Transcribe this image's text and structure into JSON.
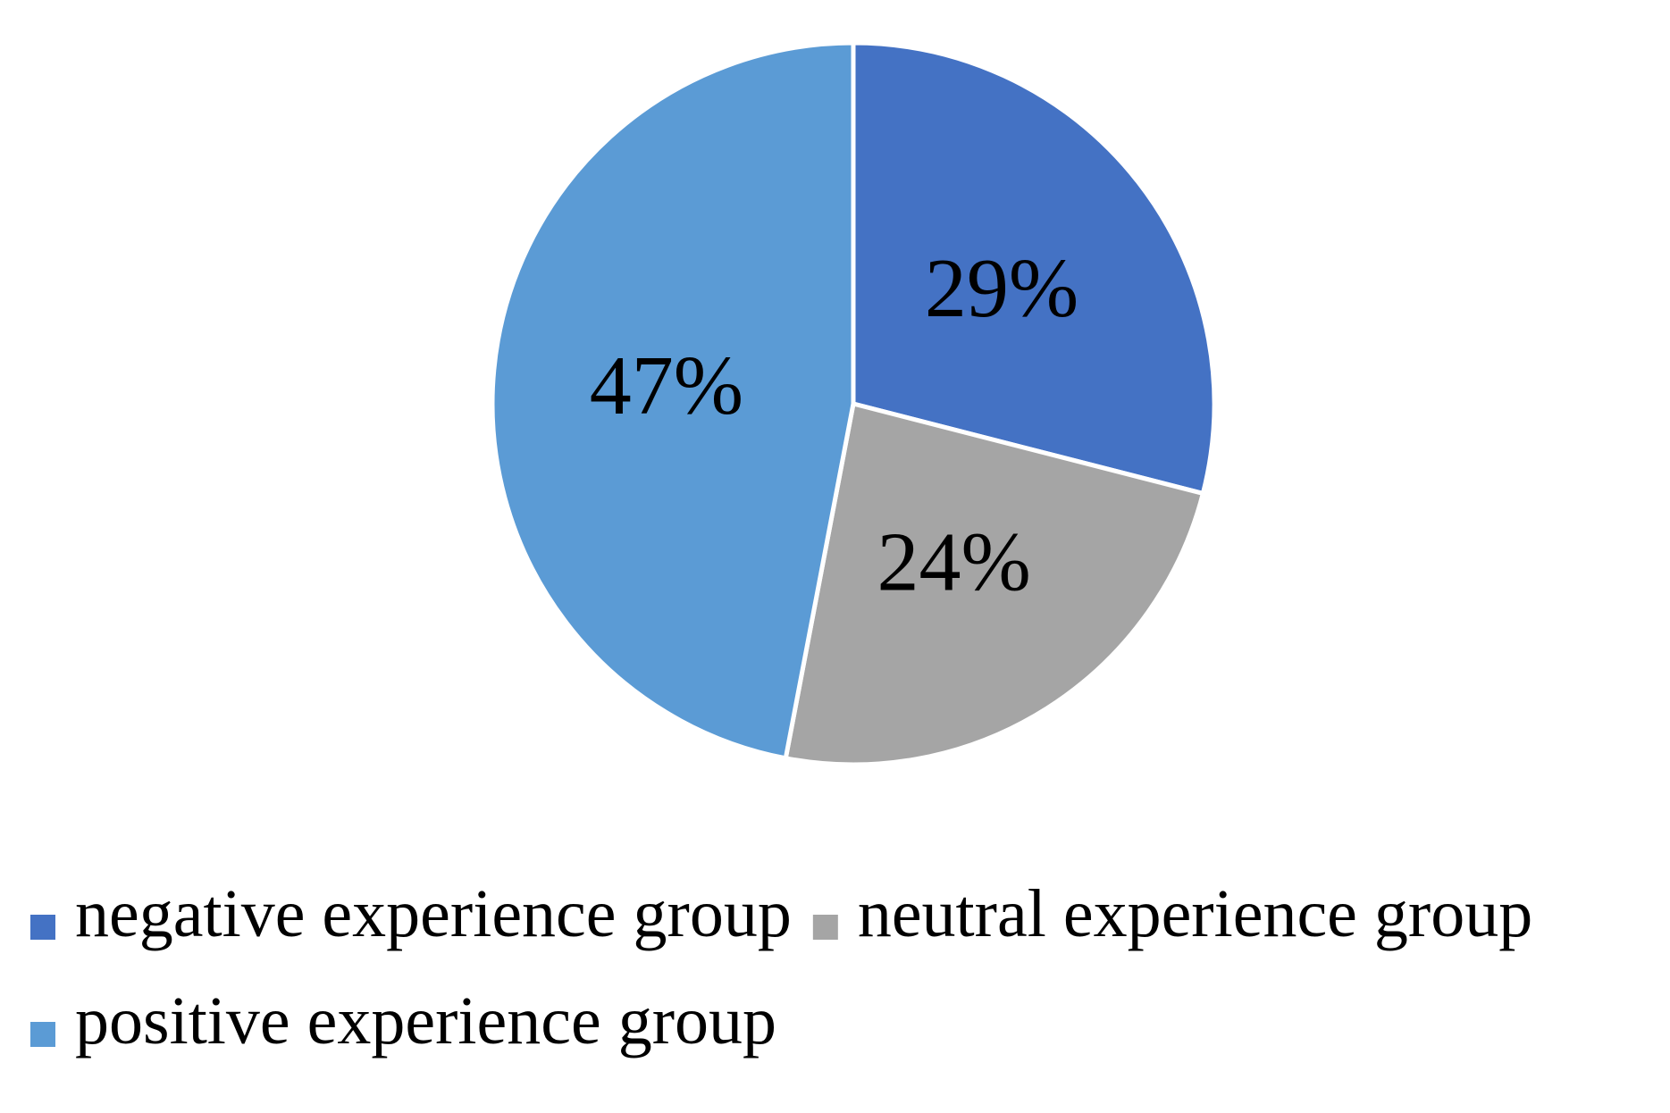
{
  "chart_data": {
    "type": "pie",
    "title": "",
    "start_angle_deg": 90,
    "direction": "clockwise",
    "slices": [
      {
        "name": "negative experience group",
        "value": 29,
        "label": "29%",
        "color": "#4472C4"
      },
      {
        "name": "neutral experience group",
        "value": 24,
        "label": "24%",
        "color": "#A5A5A5"
      },
      {
        "name": "positive experience group",
        "value": 47,
        "label": "47%",
        "color": "#5B9BD5"
      }
    ],
    "legend": {
      "position": "bottom",
      "entries": [
        "negative experience group",
        "neutral experience group",
        "positive experience group"
      ]
    }
  }
}
